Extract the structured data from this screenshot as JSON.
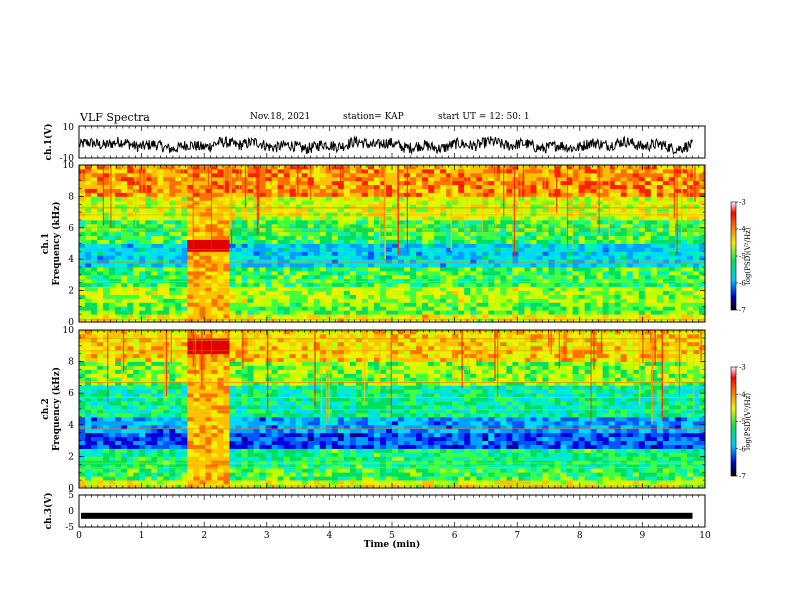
{
  "header": {
    "title": "VLF Spectra",
    "date": "Nov.18, 2021",
    "station": "station= KAP",
    "start": "start  UT =   12: 50: 1"
  },
  "chart_data": [
    {
      "type": "line",
      "panel": "ch1-voltage",
      "ylabel": "ch.1(V)",
      "ylim": [
        -10,
        10
      ],
      "y_ticks": [
        "10",
        "-10"
      ],
      "x_range": [
        0,
        9.8
      ],
      "description_values": {
        "baseline": -2,
        "fluctuation": 3.5
      }
    },
    {
      "type": "heatmap",
      "panel": "ch1-spectrogram",
      "ylabel": "ch.1\nFrequency (kHz)",
      "ylabel_lines": [
        "ch.1",
        "Frequency (kHz)"
      ],
      "ylim": [
        0,
        10
      ],
      "y_ticks": [
        "0",
        "2",
        "4",
        "6",
        "8",
        "10"
      ],
      "colorbar": {
        "label": "log(PSD)(V²/Hz)",
        "range": [
          -7,
          -3
        ],
        "ticks": [
          "-3",
          "-4",
          "-5",
          "-6",
          "-7"
        ]
      },
      "burst": {
        "t_start": 1.75,
        "t_end": 2.4,
        "f_low": 4.5,
        "f_high": 5.3
      }
    },
    {
      "type": "heatmap",
      "panel": "ch2-spectrogram",
      "ylabel_lines": [
        "ch.2",
        "Frequency (kHz)"
      ],
      "ylim": [
        0,
        10
      ],
      "y_ticks": [
        "0",
        "2",
        "4",
        "6",
        "8",
        "10"
      ],
      "colorbar": {
        "label": "log(PSD)(V²/Hz)",
        "range": [
          -7,
          -3
        ],
        "ticks": [
          "-3",
          "-4",
          "-5",
          "-6",
          "-7"
        ]
      },
      "burst": {
        "t_start": 1.75,
        "t_end": 2.4,
        "f_low": 8.6,
        "f_high": 9.6
      }
    },
    {
      "type": "line",
      "panel": "ch3-voltage",
      "ylabel": "ch.3(V)",
      "ylim": [
        -5,
        5
      ],
      "y_ticks": [
        "5",
        "0",
        "-5"
      ],
      "level": -1.5
    }
  ],
  "xaxis": {
    "label": "Time (min)",
    "ticks": [
      "0",
      "1",
      "2",
      "3",
      "4",
      "5",
      "6",
      "7",
      "8",
      "9",
      "10"
    ],
    "range": [
      0,
      10
    ]
  }
}
